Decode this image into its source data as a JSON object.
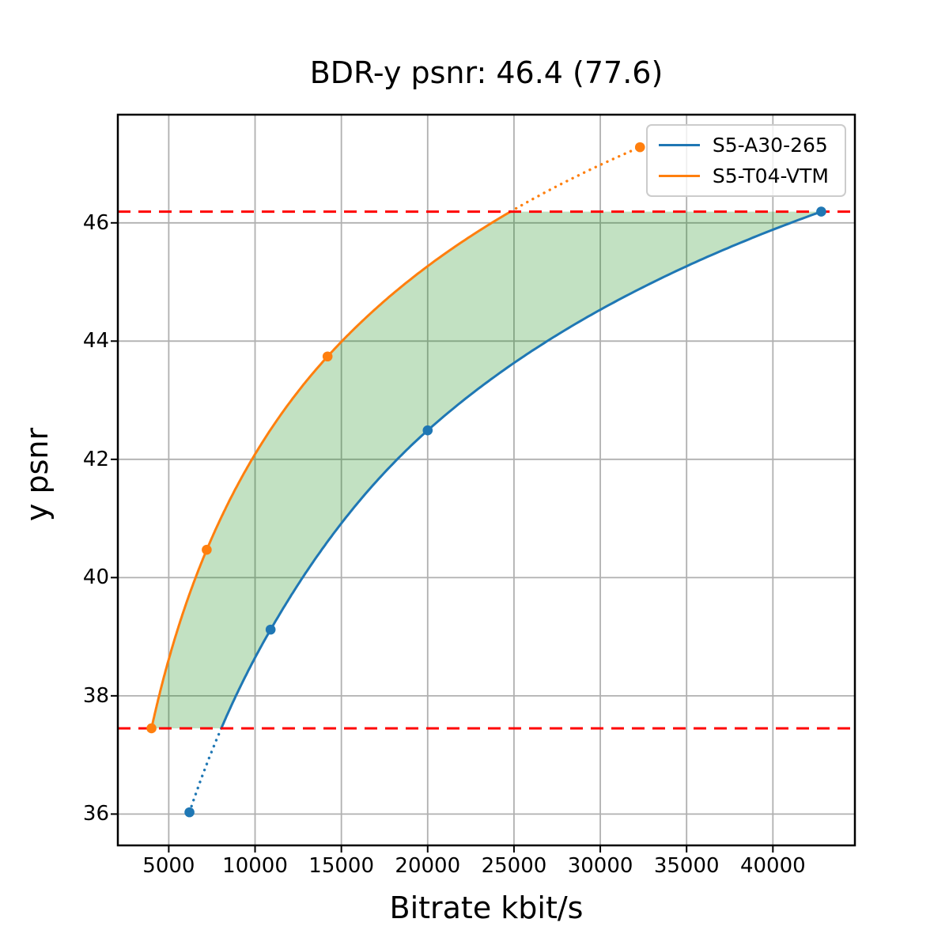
{
  "chart_data": {
    "type": "line",
    "title": "BDR-y psnr: 46.4 (77.6)",
    "xlabel": "Bitrate kbit/s",
    "ylabel": "y psnr",
    "xlim": [
      2050,
      44750
    ],
    "ylim": [
      35.47,
      47.83
    ],
    "x_ticks": [
      5000,
      10000,
      15000,
      20000,
      25000,
      30000,
      35000,
      40000
    ],
    "y_ticks": [
      36,
      38,
      40,
      42,
      44,
      46
    ],
    "grid": true,
    "grid_color": "#b0b0b0",
    "legend_position": "upper right",
    "interpolation": "pchip-log-x",
    "series": [
      {
        "name": "S5-A30-265",
        "color": "#1f77b4",
        "points": [
          [
            6200,
            36.03
          ],
          [
            10900,
            39.12
          ],
          [
            20000,
            42.49
          ],
          [
            42800,
            46.19
          ]
        ]
      },
      {
        "name": "S5-T04-VTM",
        "color": "#ff7f0e",
        "points": [
          [
            4000,
            37.45
          ],
          [
            7200,
            40.47
          ],
          [
            14200,
            43.74
          ],
          [
            32300,
            47.28
          ]
        ]
      }
    ],
    "hlines": [
      {
        "y": 46.19,
        "color": "#ff0000",
        "style": "dashed"
      },
      {
        "y": 37.45,
        "color": "#ff0000",
        "style": "dashed"
      }
    ],
    "overlap_fill": {
      "color": "#008000",
      "opacity": 0.24,
      "y_min": 37.45,
      "y_max": 46.19
    }
  }
}
